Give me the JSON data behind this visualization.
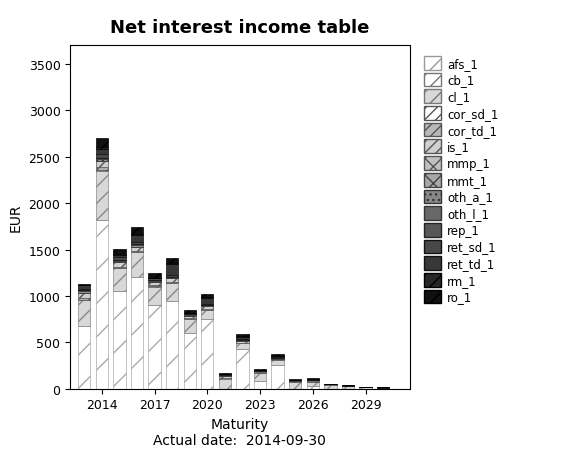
{
  "title": "Net interest income table",
  "xlabel_line1": "Maturity",
  "xlabel_line2": "Actual date:  2014-09-30",
  "ylabel": "EUR",
  "ylim": [
    0,
    3700
  ],
  "yticks": [
    0,
    500,
    1000,
    1500,
    2000,
    2500,
    3000,
    3500
  ],
  "xlim": [
    2012.2,
    2031.5
  ],
  "xtick_label_positions": [
    2014,
    2017,
    2020,
    2023,
    2026,
    2029
  ],
  "xtick_labels": [
    "2014",
    "2017",
    "2020",
    "2023",
    "2026",
    "2029"
  ],
  "bar_width": 0.7,
  "bar_positions": [
    2013,
    2014,
    2015,
    2016,
    2017,
    2018,
    2019,
    2020,
    2021,
    2022,
    2023,
    2024,
    2025,
    2026,
    2027,
    2028,
    2029,
    2030
  ],
  "legend_labels": [
    "afs_1",
    "cb_1",
    "cl_1",
    "cor_sd_1",
    "cor_td_1",
    "is_1",
    "mmp_1",
    "mmt_1",
    "oth_a_1",
    "oth_l_1",
    "rep_1",
    "ret_sd_1",
    "ret_td_1",
    "rm_1",
    "ro_1"
  ],
  "segment_styles": {
    "afs_1": {
      "facecolor": "white",
      "hatch": "/",
      "edgecolor": "#aaaaaa",
      "lw": 0.5
    },
    "cb_1": {
      "facecolor": "white",
      "hatch": "//",
      "edgecolor": "#888888",
      "lw": 0.5
    },
    "cl_1": {
      "facecolor": "#d8d8d8",
      "hatch": "//",
      "edgecolor": "#888888",
      "lw": 0.5
    },
    "cor_sd_1": {
      "facecolor": "white",
      "hatch": "///",
      "edgecolor": "#555555",
      "lw": 0.5
    },
    "cor_td_1": {
      "facecolor": "#b0b0b0",
      "hatch": "///",
      "edgecolor": "#555555",
      "lw": 0.5
    },
    "is_1": {
      "facecolor": "#d0d0d0",
      "hatch": "///",
      "edgecolor": "#555555",
      "lw": 0.5
    },
    "mmp_1": {
      "facecolor": "#c0c0c0",
      "hatch": "xx",
      "edgecolor": "#555555",
      "lw": 0.5
    },
    "mmt_1": {
      "facecolor": "#a8a8a8",
      "hatch": "xx",
      "edgecolor": "#444444",
      "lw": 0.5
    },
    "oth_a_1": {
      "facecolor": "#909090",
      "hatch": "...",
      "edgecolor": "#333333",
      "lw": 0.5
    },
    "oth_l_1": {
      "facecolor": "#787878",
      "hatch": "",
      "edgecolor": "#333333",
      "lw": 0.5
    },
    "rep_1": {
      "facecolor": "#606060",
      "hatch": "",
      "edgecolor": "#222222",
      "lw": 0.5
    },
    "ret_sd_1": {
      "facecolor": "#4a4a4a",
      "hatch": "",
      "edgecolor": "#111111",
      "lw": 0.5
    },
    "ret_td_1": {
      "facecolor": "#383838",
      "hatch": "",
      "edgecolor": "#111111",
      "lw": 0.5
    },
    "rm_1": {
      "facecolor": "#282828",
      "hatch": "//",
      "edgecolor": "#000000",
      "lw": 0.5
    },
    "ro_1": {
      "facecolor": "#101010",
      "hatch": "//",
      "edgecolor": "#000000",
      "lw": 0.5
    }
  },
  "segments": {
    "afs_1": [
      680,
      1820,
      1050,
      1200,
      900,
      950,
      600,
      750,
      0,
      430,
      80,
      260,
      0,
      30,
      0,
      0,
      0,
      0
    ],
    "cb_1": [
      0,
      0,
      0,
      0,
      0,
      0,
      0,
      0,
      0,
      0,
      0,
      0,
      0,
      0,
      0,
      0,
      0,
      0
    ],
    "cl_1": [
      280,
      530,
      250,
      270,
      200,
      190,
      150,
      100,
      110,
      60,
      90,
      45,
      70,
      45,
      45,
      25,
      15,
      10
    ],
    "cor_sd_1": [
      0,
      8,
      4,
      4,
      4,
      4,
      4,
      4,
      3,
      3,
      3,
      3,
      3,
      3,
      0,
      0,
      0,
      0
    ],
    "cor_td_1": [
      18,
      28,
      13,
      13,
      9,
      9,
      7,
      7,
      4,
      4,
      4,
      4,
      4,
      3,
      0,
      0,
      0,
      0
    ],
    "is_1": [
      55,
      65,
      45,
      45,
      38,
      38,
      28,
      28,
      18,
      18,
      13,
      13,
      9,
      9,
      4,
      4,
      2,
      2
    ],
    "mmp_1": [
      0,
      0,
      0,
      0,
      0,
      0,
      0,
      0,
      0,
      0,
      0,
      0,
      0,
      0,
      0,
      0,
      0,
      0
    ],
    "mmt_1": [
      0,
      0,
      0,
      0,
      0,
      0,
      0,
      0,
      0,
      0,
      0,
      0,
      0,
      0,
      0,
      0,
      0,
      0
    ],
    "oth_a_1": [
      18,
      28,
      18,
      18,
      13,
      13,
      9,
      9,
      7,
      7,
      4,
      4,
      3,
      3,
      2,
      2,
      1,
      1
    ],
    "oth_l_1": [
      9,
      9,
      7,
      7,
      5,
      5,
      4,
      4,
      3,
      3,
      2,
      2,
      2,
      2,
      1,
      1,
      0,
      0
    ],
    "rep_1": [
      0,
      0,
      0,
      0,
      0,
      0,
      0,
      0,
      0,
      0,
      0,
      0,
      0,
      0,
      0,
      0,
      0,
      0
    ],
    "ret_sd_1": [
      18,
      45,
      28,
      28,
      22,
      18,
      13,
      13,
      9,
      9,
      7,
      7,
      4,
      4,
      2,
      2,
      1,
      1
    ],
    "ret_td_1": [
      35,
      55,
      28,
      75,
      0,
      120,
      0,
      65,
      0,
      28,
      0,
      18,
      0,
      9,
      0,
      4,
      0,
      2
    ],
    "rm_1": [
      9,
      18,
      9,
      9,
      7,
      7,
      4,
      4,
      2,
      2,
      2,
      2,
      1,
      1,
      0,
      0,
      0,
      0
    ],
    "ro_1": [
      5,
      95,
      55,
      75,
      45,
      55,
      28,
      38,
      18,
      22,
      9,
      13,
      5,
      7,
      2,
      4,
      1,
      2
    ]
  },
  "background_color": "#ffffff"
}
